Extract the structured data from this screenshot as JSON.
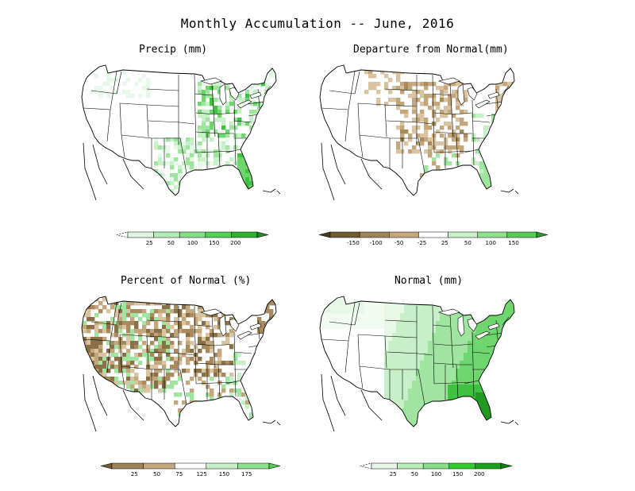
{
  "title": "Monthly Accumulation -- June, 2016",
  "panels": [
    {
      "id": "precip",
      "title": "Precip (mm)",
      "scale_type": "wet",
      "legend": {
        "ticks": [
          "25",
          "50",
          "100",
          "150",
          "200"
        ],
        "colors": [
          "#ffffff",
          "#dff5df",
          "#b5ebb5",
          "#86de86",
          "#53cf53",
          "#2fb02f",
          "#1f8a1f"
        ],
        "left_arrow_dashed": true
      }
    },
    {
      "id": "departure",
      "title": "Departure from Normal(mm)",
      "scale_type": "diverging",
      "legend": {
        "ticks": [
          "-150",
          "-100",
          "-50",
          "-25",
          "25",
          "50",
          "100",
          "150"
        ],
        "colors": [
          "#4a3a20",
          "#6f5a36",
          "#9c8358",
          "#c4a67c",
          "#ffffff",
          "#c8f0c8",
          "#8fe08f",
          "#55cc55",
          "#2a9a2a"
        ],
        "left_arrow_dashed": false
      }
    },
    {
      "id": "percent",
      "title": "Percent of Normal (%)",
      "scale_type": "diverging",
      "legend": {
        "ticks": [
          "25",
          "50",
          "75",
          "125",
          "150",
          "175"
        ],
        "colors": [
          "#6f5a36",
          "#9c8358",
          "#c4a67c",
          "#ffffff",
          "#c8f0c8",
          "#8fe08f",
          "#55cc55"
        ],
        "left_arrow_dashed": false
      }
    },
    {
      "id": "normal",
      "title": "Normal (mm)",
      "scale_type": "normal",
      "legend": {
        "ticks": [
          "25",
          "50",
          "100",
          "150",
          "200"
        ],
        "colors": [
          "#ffffff",
          "#e8f8e8",
          "#b8ecb8",
          "#86de86",
          "#2ecc2e",
          "#1aa01a",
          "#148014"
        ],
        "left_arrow_dashed": true
      }
    }
  ]
}
